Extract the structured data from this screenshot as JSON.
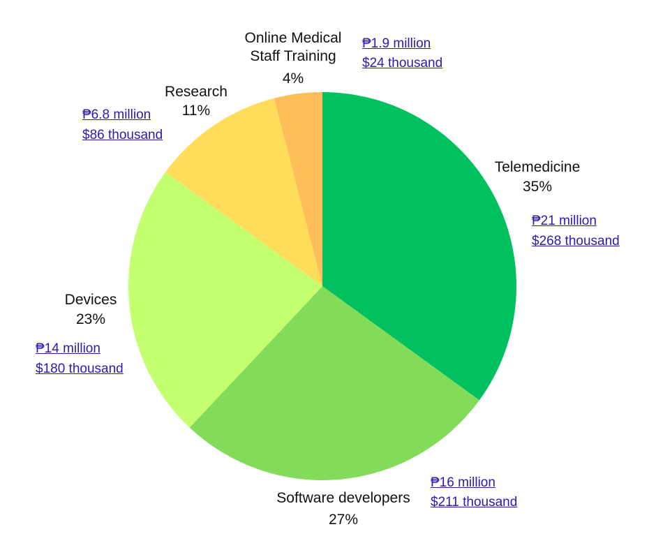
{
  "chart_data": {
    "type": "pie",
    "categories": [
      "Telemedicine",
      "Software developers",
      "Devices",
      "Research",
      "Online Medical\nStaff Training"
    ],
    "values": [
      35,
      27,
      23,
      11,
      4
    ],
    "value_labels": [
      "35%",
      "27%",
      "23%",
      "11%",
      "4%"
    ],
    "colors": [
      "#00c060",
      "#82dc5a",
      "#c3ff6e",
      "#ffdc5a",
      "#ffbe5a"
    ],
    "amounts": [
      [
        "₱21 million",
        "$268 thousand"
      ],
      [
        "₱16 million",
        "$211 thousand"
      ],
      [
        "₱14 million",
        "$180 thousand"
      ],
      [
        "₱6.8 million",
        "$86 thousand"
      ],
      [
        "₱1.9 million",
        "$24 thousand"
      ]
    ]
  }
}
